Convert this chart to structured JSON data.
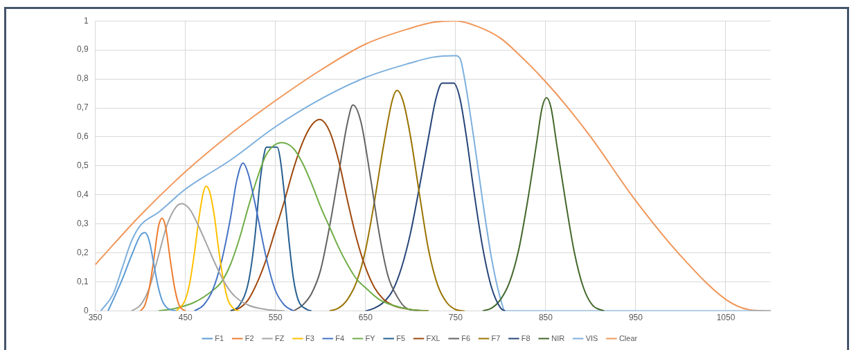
{
  "chart_data": {
    "type": "line",
    "xlim": [
      350,
      1100
    ],
    "xticks": [
      350,
      450,
      550,
      650,
      750,
      850,
      950,
      1050
    ],
    "ylim": [
      0,
      1
    ],
    "yticks": [
      0,
      {
        "value": 0.1,
        "label": "0,1"
      },
      {
        "value": 0.2,
        "label": "0,2"
      },
      {
        "value": 0.3,
        "label": "0,3"
      },
      {
        "value": 0.4,
        "label": "0,4"
      },
      {
        "value": 0.5,
        "label": "0,5"
      },
      {
        "value": 0.6,
        "label": "0,6"
      },
      {
        "value": 0.7,
        "label": "0,7"
      },
      {
        "value": 0.8,
        "label": "0,8"
      },
      {
        "value": 0.9,
        "label": "0,9"
      },
      1
    ],
    "grid": true,
    "legend": "bottom",
    "marker": "none",
    "line_style": "solid",
    "series": [
      {
        "name": "F1",
        "color": "#5b9bd5",
        "x": [
          364,
          370,
          380,
          390,
          400,
          405,
          410,
          415,
          420,
          425,
          430,
          440
        ],
        "values": [
          0,
          0.04,
          0.11,
          0.19,
          0.26,
          0.27,
          0.24,
          0.16,
          0.08,
          0.03,
          0.01,
          0
        ]
      },
      {
        "name": "F2",
        "color": "#ed7d31",
        "x": [
          400,
          405,
          410,
          415,
          420,
          424,
          428,
          433,
          438,
          443,
          450
        ],
        "values": [
          0,
          0.02,
          0.08,
          0.18,
          0.29,
          0.32,
          0.29,
          0.18,
          0.08,
          0.02,
          0
        ]
      },
      {
        "name": "FZ",
        "color": "#a5a5a5",
        "x": [
          390,
          400,
          410,
          420,
          430,
          440,
          446,
          455,
          465,
          475,
          485,
          495,
          505,
          520,
          540,
          560
        ],
        "values": [
          0,
          0.02,
          0.08,
          0.19,
          0.3,
          0.36,
          0.37,
          0.35,
          0.29,
          0.22,
          0.15,
          0.09,
          0.05,
          0.02,
          0.005,
          0
        ]
      },
      {
        "name": "F3",
        "color": "#ffc000",
        "x": [
          440,
          450,
          455,
          460,
          465,
          470,
          473,
          477,
          482,
          487,
          492,
          497,
          505,
          510
        ],
        "values": [
          0,
          0.04,
          0.1,
          0.2,
          0.32,
          0.41,
          0.43,
          0.41,
          0.33,
          0.21,
          0.11,
          0.04,
          0.005,
          0
        ]
      },
      {
        "name": "F4",
        "color": "#4472c4",
        "x": [
          460,
          470,
          480,
          490,
          500,
          507,
          514,
          520,
          530,
          540,
          550,
          560,
          570
        ],
        "values": [
          0,
          0.02,
          0.07,
          0.17,
          0.32,
          0.45,
          0.51,
          0.47,
          0.33,
          0.18,
          0.07,
          0.02,
          0
        ]
      },
      {
        "name": "FY",
        "color": "#70ad47",
        "x": [
          420,
          440,
          460,
          480,
          490,
          500,
          510,
          520,
          530,
          540,
          557,
          570,
          580,
          590,
          600,
          610,
          620,
          630,
          640,
          650,
          665,
          680,
          700,
          720
        ],
        "values": [
          0,
          0.01,
          0.03,
          0.07,
          0.1,
          0.16,
          0.25,
          0.36,
          0.46,
          0.54,
          0.58,
          0.56,
          0.51,
          0.44,
          0.36,
          0.29,
          0.22,
          0.16,
          0.11,
          0.08,
          0.04,
          0.02,
          0.005,
          0
        ]
      },
      {
        "name": "F5",
        "color": "#255e91",
        "x": [
          500,
          510,
          520,
          527,
          533,
          538,
          540,
          552,
          555,
          560,
          565,
          570,
          575,
          585,
          590
        ],
        "values": [
          0,
          0.02,
          0.1,
          0.25,
          0.45,
          0.55,
          0.565,
          0.565,
          0.53,
          0.4,
          0.24,
          0.11,
          0.04,
          0.005,
          0
        ]
      },
      {
        "name": "FXL",
        "color": "#9e480e",
        "x": [
          500,
          510,
          520,
          530,
          540,
          550,
          560,
          570,
          580,
          590,
          599,
          610,
          620,
          630,
          640,
          650,
          660,
          670,
          680,
          700,
          720
        ],
        "values": [
          0,
          0.01,
          0.04,
          0.1,
          0.18,
          0.28,
          0.38,
          0.49,
          0.58,
          0.64,
          0.66,
          0.62,
          0.52,
          0.38,
          0.25,
          0.15,
          0.08,
          0.04,
          0.02,
          0.005,
          0
        ]
      },
      {
        "name": "F6",
        "color": "#636363",
        "x": [
          570,
          580,
          590,
          600,
          610,
          620,
          630,
          636,
          645,
          655,
          665,
          675,
          685,
          695,
          710
        ],
        "values": [
          0,
          0.02,
          0.06,
          0.14,
          0.29,
          0.47,
          0.65,
          0.71,
          0.65,
          0.47,
          0.27,
          0.12,
          0.05,
          0.01,
          0
        ]
      },
      {
        "name": "F7",
        "color": "#997300",
        "x": [
          610,
          620,
          630,
          640,
          650,
          660,
          670,
          680,
          685,
          692,
          700,
          710,
          720,
          730,
          740,
          750,
          760
        ],
        "values": [
          0,
          0.01,
          0.04,
          0.1,
          0.21,
          0.38,
          0.57,
          0.73,
          0.76,
          0.72,
          0.6,
          0.4,
          0.21,
          0.09,
          0.03,
          0.005,
          0
        ]
      },
      {
        "name": "F8",
        "color": "#264478",
        "x": [
          650,
          660,
          670,
          680,
          690,
          700,
          710,
          720,
          728,
          735,
          748,
          755,
          762,
          770,
          780,
          790,
          800,
          805
        ],
        "values": [
          0,
          0.01,
          0.03,
          0.07,
          0.15,
          0.27,
          0.43,
          0.6,
          0.73,
          0.785,
          0.785,
          0.73,
          0.6,
          0.42,
          0.22,
          0.08,
          0.01,
          0
        ]
      },
      {
        "name": "NIR",
        "color": "#43682b",
        "x": [
          780,
          790,
          800,
          810,
          820,
          830,
          840,
          846,
          851,
          856,
          862,
          872,
          882,
          892,
          902,
          915
        ],
        "values": [
          0,
          0.01,
          0.04,
          0.1,
          0.21,
          0.38,
          0.58,
          0.7,
          0.735,
          0.7,
          0.58,
          0.38,
          0.2,
          0.08,
          0.02,
          0
        ]
      },
      {
        "name": "VIS",
        "color": "#7cafdd",
        "x": [
          356,
          370,
          380,
          390,
          400,
          420,
          450,
          500,
          550,
          600,
          650,
          700,
          725,
          750,
          755,
          760,
          770,
          780,
          790,
          800,
          805,
          1100
        ],
        "values": [
          0,
          0.06,
          0.15,
          0.24,
          0.295,
          0.34,
          0.42,
          0.52,
          0.635,
          0.73,
          0.805,
          0.855,
          0.875,
          0.88,
          0.87,
          0.8,
          0.6,
          0.38,
          0.18,
          0.04,
          0,
          0
        ]
      },
      {
        "name": "Clear",
        "color": "#f1975a",
        "x": [
          350,
          400,
          450,
          500,
          550,
          600,
          650,
          700,
          725,
          750,
          775,
          800,
          825,
          850,
          875,
          900,
          950,
          1000,
          1050,
          1075,
          1100
        ],
        "values": [
          0.16,
          0.33,
          0.48,
          0.61,
          0.725,
          0.83,
          0.92,
          0.975,
          0.995,
          1,
          0.98,
          0.94,
          0.87,
          0.79,
          0.7,
          0.6,
          0.38,
          0.19,
          0.04,
          0.005,
          0
        ]
      }
    ]
  }
}
